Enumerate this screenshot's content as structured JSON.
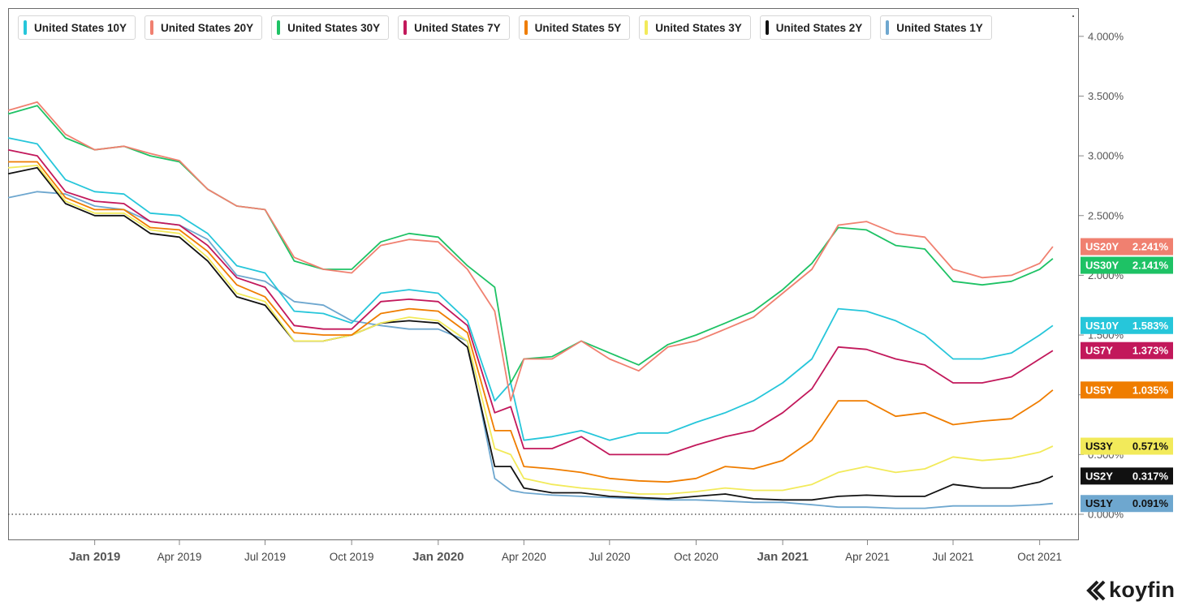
{
  "legend": [
    {
      "label": "United States 10Y",
      "color": "#26c6da"
    },
    {
      "label": "United States 20Y",
      "color": "#f08070"
    },
    {
      "label": "United States 30Y",
      "color": "#1ec265"
    },
    {
      "label": "United States 7Y",
      "color": "#c2185b"
    },
    {
      "label": "United States 5Y",
      "color": "#ef7d00"
    },
    {
      "label": "United States 3Y",
      "color": "#f2ea5a"
    },
    {
      "label": "United States 2Y",
      "color": "#111111"
    },
    {
      "label": "United States 1Y",
      "color": "#6ea7cf"
    }
  ],
  "brand": {
    "name": "koyfin",
    "icon": "koyfin-logo-icon"
  },
  "chart_data": {
    "type": "line",
    "ylim": [
      -0.2,
      4.2
    ],
    "xlim": [
      "2018-10-01",
      "2021-10-22"
    ],
    "y_ticks": [
      "0.000%",
      "0.500%",
      "1.000%",
      "1.500%",
      "2.000%",
      "2.500%",
      "3.000%",
      "3.500%",
      "4.000%"
    ],
    "y_tick_values": [
      0,
      0.5,
      1.0,
      1.5,
      2.0,
      2.5,
      3.0,
      3.5,
      4.0
    ],
    "x_ticks": [
      {
        "label": "Jan 2019",
        "date": "2019-01-01",
        "major": true
      },
      {
        "label": "Apr 2019",
        "date": "2019-04-01",
        "major": false
      },
      {
        "label": "Jul 2019",
        "date": "2019-07-01",
        "major": false
      },
      {
        "label": "Oct 2019",
        "date": "2019-10-01",
        "major": false
      },
      {
        "label": "Jan 2020",
        "date": "2020-01-01",
        "major": true
      },
      {
        "label": "Apr 2020",
        "date": "2020-04-01",
        "major": false
      },
      {
        "label": "Jul 2020",
        "date": "2020-07-01",
        "major": false
      },
      {
        "label": "Oct 2020",
        "date": "2020-10-01",
        "major": false
      },
      {
        "label": "Jan 2021",
        "date": "2021-01-01",
        "major": true
      },
      {
        "label": "Apr 2021",
        "date": "2021-04-01",
        "major": false
      },
      {
        "label": "Jul 2021",
        "date": "2021-07-01",
        "major": false
      },
      {
        "label": "Oct 2021",
        "date": "2021-10-01",
        "major": false
      }
    ],
    "dates": [
      "2018-10-01",
      "2018-11-01",
      "2018-12-01",
      "2019-01-01",
      "2019-02-01",
      "2019-03-01",
      "2019-04-01",
      "2019-05-01",
      "2019-06-01",
      "2019-07-01",
      "2019-08-01",
      "2019-09-01",
      "2019-10-01",
      "2019-11-01",
      "2019-12-01",
      "2020-01-01",
      "2020-02-01",
      "2020-03-01",
      "2020-03-18",
      "2020-04-01",
      "2020-05-01",
      "2020-06-01",
      "2020-07-01",
      "2020-08-01",
      "2020-09-01",
      "2020-10-01",
      "2020-11-01",
      "2020-12-01",
      "2021-01-01",
      "2021-02-01",
      "2021-03-01",
      "2021-03-31",
      "2021-05-01",
      "2021-06-01",
      "2021-07-01",
      "2021-08-01",
      "2021-09-01",
      "2021-10-01",
      "2021-10-15"
    ],
    "series": [
      {
        "name": "United States 20Y",
        "tag": "US20Y",
        "last": "2.241%",
        "color": "#f08070",
        "values": [
          3.38,
          3.45,
          3.18,
          3.05,
          3.08,
          3.02,
          2.96,
          2.72,
          2.58,
          2.55,
          2.15,
          2.05,
          2.02,
          2.25,
          2.3,
          2.28,
          2.05,
          1.7,
          0.95,
          1.3,
          1.3,
          1.45,
          1.3,
          1.2,
          1.4,
          1.45,
          1.55,
          1.65,
          1.85,
          2.05,
          2.42,
          2.45,
          2.35,
          2.32,
          2.05,
          1.98,
          2.0,
          2.1,
          2.24
        ]
      },
      {
        "name": "United States 30Y",
        "tag": "US30Y",
        "last": "2.141%",
        "color": "#1ec265",
        "values": [
          3.35,
          3.42,
          3.15,
          3.05,
          3.08,
          3.0,
          2.95,
          2.72,
          2.58,
          2.55,
          2.12,
          2.05,
          2.05,
          2.28,
          2.35,
          2.32,
          2.08,
          1.9,
          1.1,
          1.3,
          1.32,
          1.45,
          1.35,
          1.25,
          1.42,
          1.5,
          1.6,
          1.7,
          1.88,
          2.1,
          2.4,
          2.38,
          2.25,
          2.22,
          1.95,
          1.92,
          1.95,
          2.05,
          2.14
        ]
      },
      {
        "name": "United States 10Y",
        "tag": "US10Y",
        "last": "1.583%",
        "color": "#26c6da",
        "values": [
          3.15,
          3.1,
          2.8,
          2.7,
          2.68,
          2.52,
          2.5,
          2.35,
          2.08,
          2.02,
          1.7,
          1.68,
          1.6,
          1.85,
          1.88,
          1.85,
          1.62,
          0.95,
          1.1,
          0.62,
          0.65,
          0.7,
          0.62,
          0.68,
          0.68,
          0.77,
          0.85,
          0.95,
          1.1,
          1.3,
          1.72,
          1.7,
          1.62,
          1.5,
          1.3,
          1.3,
          1.35,
          1.5,
          1.58
        ]
      },
      {
        "name": "United States 7Y",
        "tag": "US7Y",
        "last": "1.373%",
        "color": "#c2185b",
        "values": [
          3.05,
          3.0,
          2.7,
          2.62,
          2.6,
          2.45,
          2.42,
          2.25,
          1.98,
          1.9,
          1.58,
          1.55,
          1.55,
          1.78,
          1.8,
          1.78,
          1.58,
          0.85,
          0.9,
          0.55,
          0.55,
          0.65,
          0.5,
          0.5,
          0.5,
          0.58,
          0.65,
          0.7,
          0.85,
          1.05,
          1.4,
          1.38,
          1.3,
          1.25,
          1.1,
          1.1,
          1.15,
          1.3,
          1.37
        ]
      },
      {
        "name": "United States 5Y",
        "tag": "US5Y",
        "last": "1.035%",
        "color": "#ef7d00",
        "values": [
          2.95,
          2.95,
          2.65,
          2.55,
          2.55,
          2.4,
          2.38,
          2.2,
          1.92,
          1.82,
          1.52,
          1.5,
          1.5,
          1.68,
          1.72,
          1.7,
          1.52,
          0.7,
          0.7,
          0.4,
          0.38,
          0.35,
          0.3,
          0.28,
          0.27,
          0.3,
          0.4,
          0.38,
          0.45,
          0.62,
          0.95,
          0.95,
          0.82,
          0.85,
          0.75,
          0.78,
          0.8,
          0.95,
          1.04
        ]
      },
      {
        "name": "United States 3Y",
        "tag": "US3Y",
        "last": "0.571%",
        "color": "#f2ea5a",
        "values": [
          2.9,
          2.92,
          2.62,
          2.52,
          2.52,
          2.38,
          2.35,
          2.15,
          1.85,
          1.78,
          1.45,
          1.45,
          1.5,
          1.6,
          1.65,
          1.62,
          1.45,
          0.55,
          0.5,
          0.3,
          0.25,
          0.22,
          0.2,
          0.17,
          0.17,
          0.19,
          0.22,
          0.2,
          0.2,
          0.25,
          0.35,
          0.4,
          0.35,
          0.38,
          0.48,
          0.45,
          0.47,
          0.52,
          0.57
        ]
      },
      {
        "name": "United States 2Y",
        "tag": "US2Y",
        "last": "0.317%",
        "color": "#111111",
        "values": [
          2.85,
          2.9,
          2.6,
          2.5,
          2.5,
          2.35,
          2.32,
          2.12,
          1.82,
          1.75,
          1.45,
          1.45,
          1.5,
          1.6,
          1.62,
          1.6,
          1.4,
          0.4,
          0.4,
          0.22,
          0.18,
          0.18,
          0.15,
          0.14,
          0.13,
          0.15,
          0.17,
          0.13,
          0.12,
          0.12,
          0.15,
          0.16,
          0.15,
          0.15,
          0.25,
          0.22,
          0.22,
          0.27,
          0.32
        ]
      },
      {
        "name": "United States 1Y",
        "tag": "US1Y",
        "last": "0.091%",
        "color": "#6ea7cf",
        "values": [
          2.65,
          2.7,
          2.68,
          2.58,
          2.55,
          2.45,
          2.42,
          2.3,
          2.0,
          1.95,
          1.78,
          1.75,
          1.62,
          1.58,
          1.55,
          1.55,
          1.45,
          0.3,
          0.2,
          0.18,
          0.16,
          0.15,
          0.14,
          0.13,
          0.12,
          0.12,
          0.11,
          0.1,
          0.1,
          0.08,
          0.06,
          0.06,
          0.05,
          0.05,
          0.07,
          0.07,
          0.07,
          0.08,
          0.09
        ]
      }
    ]
  }
}
